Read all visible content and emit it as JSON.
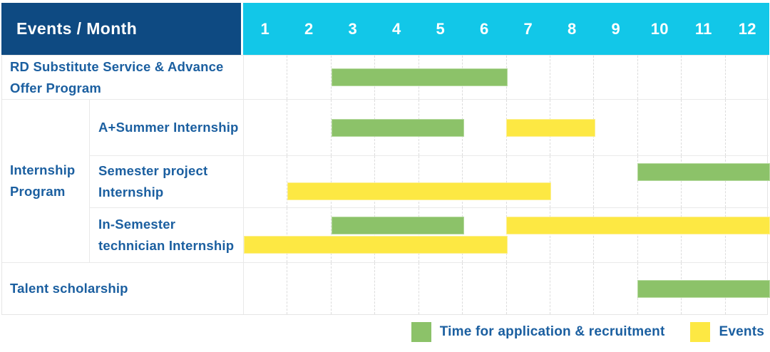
{
  "header": {
    "title": "Events / Month"
  },
  "colors": {
    "header_bg": "#0e4a82",
    "months_bg": "#12c7e8",
    "label_text": "#1b5fa0",
    "application_green": "#8cc269",
    "event_yellow": "#fde843"
  },
  "chart_data": {
    "type": "gantt",
    "title": "Events / Month",
    "x_unit": "month",
    "x_range": [
      1,
      12
    ],
    "months": [
      "1",
      "2",
      "3",
      "4",
      "5",
      "6",
      "7",
      "8",
      "9",
      "10",
      "11",
      "12"
    ],
    "grid": "dashed-vertical",
    "legend_position": "bottom-right",
    "rows": [
      {
        "label": "RD Substitute Service & Advance Offer Program",
        "group": "",
        "bars": [
          {
            "kind": "application",
            "start_month": 3,
            "end_month": 6,
            "line": 0
          }
        ]
      },
      {
        "label": "A+Summer Internship",
        "group": "Internship Program",
        "bars": [
          {
            "kind": "application",
            "start_month": 3,
            "end_month": 5,
            "line": 0
          },
          {
            "kind": "event",
            "start_month": 7,
            "end_month": 8,
            "line": 0
          }
        ]
      },
      {
        "label": "Semester project Internship",
        "group": "Internship Program",
        "bars": [
          {
            "kind": "application",
            "start_month": 10,
            "end_month": 12,
            "line": 0
          },
          {
            "kind": "event",
            "start_month": 2,
            "end_month": 7,
            "line": 1
          }
        ]
      },
      {
        "label": "In-Semester technician Internship",
        "group": "Internship Program",
        "bars": [
          {
            "kind": "application",
            "start_month": 3,
            "end_month": 5,
            "line": 0
          },
          {
            "kind": "event",
            "start_month": 7,
            "end_month": 12,
            "line": 0
          },
          {
            "kind": "event",
            "start_month": 1,
            "end_month": 6,
            "line": 1
          }
        ]
      },
      {
        "label": "Talent scholarship",
        "group": "",
        "bars": [
          {
            "kind": "application",
            "start_month": 10,
            "end_month": 12,
            "line": 0
          }
        ]
      }
    ],
    "legend": [
      {
        "kind": "application",
        "label": "Time for application & recruitment",
        "color": "#8cc269"
      },
      {
        "kind": "event",
        "label": "Events",
        "color": "#fde843"
      }
    ]
  }
}
